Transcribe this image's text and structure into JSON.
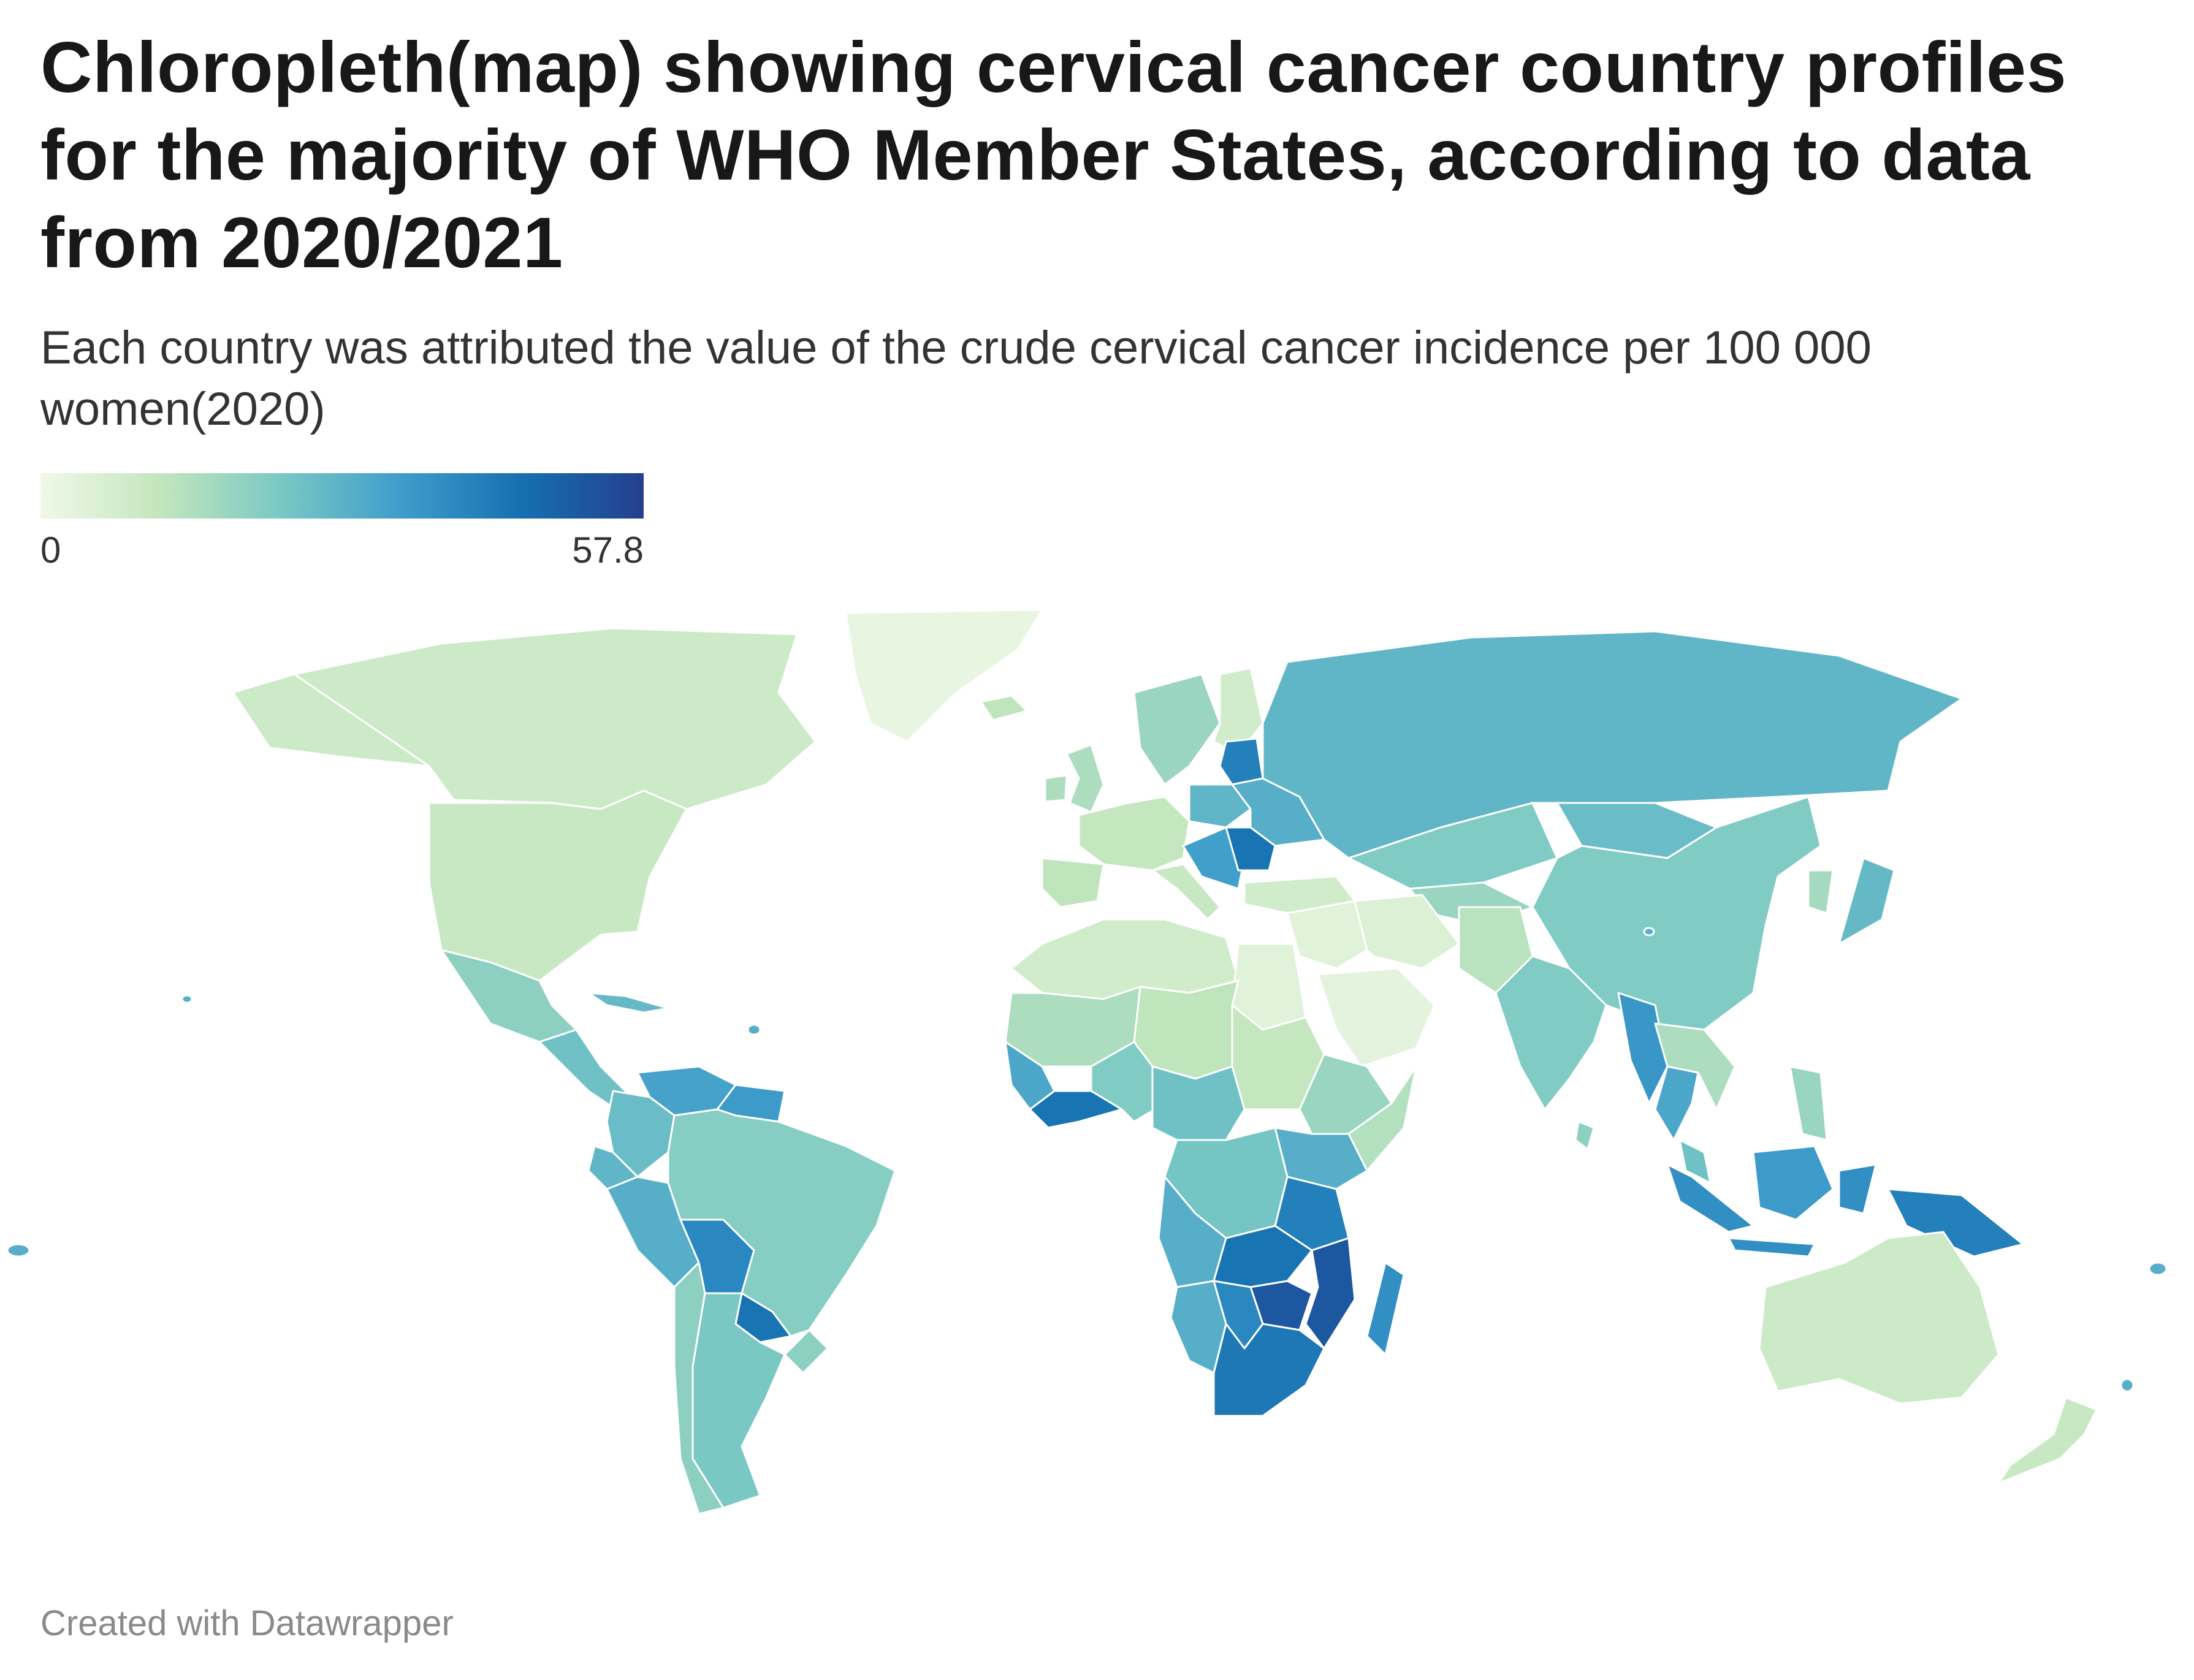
{
  "title": "Chloropleth(map) showing cervical cancer country profiles for the majority of WHO Member States, according to data from 2020/2021",
  "subtitle": "Each country was attributed the value of the crude cervical cancer incidence per 100 000 women(2020)",
  "legend": {
    "min_label": "0",
    "max_label": "57.8",
    "min": 0,
    "max": 57.8,
    "colors": [
      "#f0f8e8",
      "#c2e6bd",
      "#79c8c4",
      "#3e9ccb",
      "#156fb0",
      "#253f8e"
    ]
  },
  "credit": "Created with Datawrapper",
  "regions": [
    {
      "name": "Greenland",
      "value": 2
    },
    {
      "name": "Canada",
      "value": 9
    },
    {
      "name": "Alaska (USA)",
      "value": 9
    },
    {
      "name": "United States",
      "value": 10
    },
    {
      "name": "Mexico",
      "value": 20
    },
    {
      "name": "Central America",
      "value": 25
    },
    {
      "name": "Cuba",
      "value": 27
    },
    {
      "name": "Venezuela",
      "value": 33
    },
    {
      "name": "Colombia",
      "value": 26
    },
    {
      "name": "Guianas",
      "value": 35
    },
    {
      "name": "Peru",
      "value": 30
    },
    {
      "name": "Ecuador",
      "value": 28
    },
    {
      "name": "Bolivia",
      "value": 40
    },
    {
      "name": "Paraguay",
      "value": 45
    },
    {
      "name": "Brazil",
      "value": 21
    },
    {
      "name": "Chile",
      "value": 20
    },
    {
      "name": "Argentina",
      "value": 23
    },
    {
      "name": "Uruguay",
      "value": 20
    },
    {
      "name": "Iceland",
      "value": 12
    },
    {
      "name": "Scandinavia",
      "value": 18
    },
    {
      "name": "Finland",
      "value": 8
    },
    {
      "name": "United Kingdom",
      "value": 15
    },
    {
      "name": "Ireland",
      "value": 15
    },
    {
      "name": "Western Europe",
      "value": 11
    },
    {
      "name": "Iberia",
      "value": 12
    },
    {
      "name": "Italy",
      "value": 10
    },
    {
      "name": "Poland",
      "value": 28
    },
    {
      "name": "Baltic States",
      "value": 42
    },
    {
      "name": "Belarus & Ukraine",
      "value": 30
    },
    {
      "name": "Balkans",
      "value": 34
    },
    {
      "name": "Romania",
      "value": 45
    },
    {
      "name": "Turkey",
      "value": 8
    },
    {
      "name": "Russia",
      "value": 28
    },
    {
      "name": "Kazakhstan",
      "value": 22
    },
    {
      "name": "Central Asia",
      "value": 18
    },
    {
      "name": "Mongolia",
      "value": 26
    },
    {
      "name": "China",
      "value": 22
    },
    {
      "name": "Korea",
      "value": 16
    },
    {
      "name": "Japan",
      "value": 27
    },
    {
      "name": "Middle East",
      "value": 4
    },
    {
      "name": "Arabian Peninsula",
      "value": 3
    },
    {
      "name": "Iran",
      "value": 5
    },
    {
      "name": "Afghanistan & Pakistan",
      "value": 13
    },
    {
      "name": "India",
      "value": 22
    },
    {
      "name": "Sri Lanka",
      "value": 20
    },
    {
      "name": "Myanmar",
      "value": 36
    },
    {
      "name": "Thailand",
      "value": 32
    },
    {
      "name": "Vietnam & Laos",
      "value": 15
    },
    {
      "name": "Malaysia",
      "value": 25
    },
    {
      "name": "Philippines",
      "value": 18
    },
    {
      "name": "Sumatra",
      "value": 38
    },
    {
      "name": "Java",
      "value": 38
    },
    {
      "name": "Borneo",
      "value": 35
    },
    {
      "name": "Sulawesi",
      "value": 38
    },
    {
      "name": "New Guinea",
      "value": 42
    },
    {
      "name": "Australia",
      "value": 9
    },
    {
      "name": "New Zealand",
      "value": 10
    },
    {
      "name": "North Africa",
      "value": 8
    },
    {
      "name": "Egypt",
      "value": 4
    },
    {
      "name": "Sahel West",
      "value": 15
    },
    {
      "name": "Sahel Central",
      "value": 12
    },
    {
      "name": "Sudan",
      "value": 11
    },
    {
      "name": "West Africa coast",
      "value": 32
    },
    {
      "name": "Guinea coast",
      "value": 45
    },
    {
      "name": "Nigeria",
      "value": 22
    },
    {
      "name": "Central Africa",
      "value": 25
    },
    {
      "name": "Ethiopia",
      "value": 18
    },
    {
      "name": "Horn of Africa",
      "value": 14
    },
    {
      "name": "Kenya & Uganda",
      "value": 30
    },
    {
      "name": "Tanzania",
      "value": 42
    },
    {
      "name": "Congo DR",
      "value": 24
    },
    {
      "name": "Angola",
      "value": 30
    },
    {
      "name": "Zambia",
      "value": 45
    },
    {
      "name": "Malawi & Mozambique",
      "value": 52
    },
    {
      "name": "Zimbabwe",
      "value": 52
    },
    {
      "name": "Namibia",
      "value": 30
    },
    {
      "name": "Botswana",
      "value": 40
    },
    {
      "name": "South Africa",
      "value": 44
    },
    {
      "name": "Madagascar",
      "value": 38
    },
    {
      "name": "Small island states",
      "value": 30
    }
  ]
}
